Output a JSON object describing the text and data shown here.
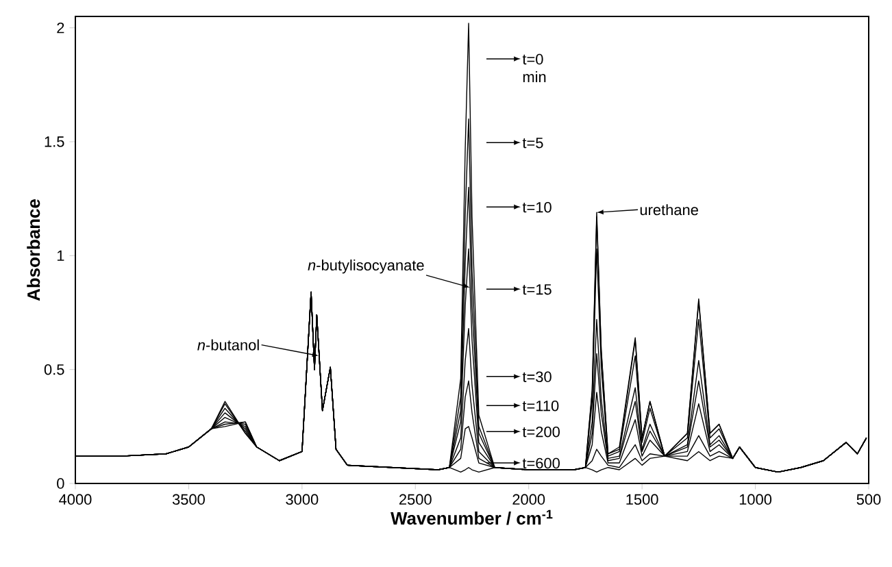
{
  "chart_data": {
    "type": "line",
    "xlabel": "Wavenumber / cm$^{-1}$",
    "ylabel": "Absorbance",
    "xlim": [
      4000,
      500
    ],
    "xticks": [
      4000,
      3500,
      3000,
      2500,
      2000,
      1500,
      1000,
      500
    ],
    "ylim": [
      0,
      2.05
    ],
    "yticks": [
      0,
      {
        "value": 0.5,
        "label": "0.5"
      },
      1,
      {
        "value": 1.5,
        "label": "1.5"
      },
      2
    ],
    "x": [
      4000,
      3800,
      3600,
      3500,
      3400,
      3340,
      3250,
      3200,
      3100,
      3000,
      2960,
      2945,
      2935,
      2910,
      2875,
      2850,
      2800,
      2600,
      2400,
      2350,
      2300,
      2280,
      2265,
      2250,
      2220,
      2150,
      2000,
      1800,
      1750,
      1720,
      1700,
      1680,
      1650,
      1600,
      1530,
      1500,
      1465,
      1400,
      1300,
      1250,
      1200,
      1160,
      1100,
      1070,
      1000,
      900,
      800,
      700,
      600,
      550,
      510
    ],
    "series": [
      {
        "color": "#000000",
        "values": [
          0.12,
          0.12,
          0.13,
          0.16,
          0.24,
          0.36,
          0.22,
          0.16,
          0.1,
          0.14,
          0.84,
          0.5,
          0.74,
          0.32,
          0.51,
          0.15,
          0.08,
          0.07,
          0.06,
          0.07,
          0.46,
          1.47,
          2.02,
          1.17,
          0.3,
          0.07,
          0.06,
          0.06,
          0.07,
          0.06,
          0.05,
          0.06,
          0.07,
          0.06,
          0.11,
          0.08,
          0.11,
          0.12,
          0.1,
          0.14,
          0.1,
          0.12,
          0.11,
          0.16,
          0.07,
          0.05,
          0.07,
          0.1,
          0.18,
          0.13,
          0.2
        ]
      },
      {
        "color": "#000000",
        "values": [
          0.12,
          0.12,
          0.13,
          0.16,
          0.24,
          0.35,
          0.22,
          0.16,
          0.1,
          0.14,
          0.84,
          0.5,
          0.74,
          0.32,
          0.51,
          0.15,
          0.08,
          0.07,
          0.06,
          0.07,
          0.38,
          1.18,
          1.6,
          0.94,
          0.25,
          0.07,
          0.06,
          0.06,
          0.07,
          0.1,
          0.15,
          0.12,
          0.08,
          0.07,
          0.17,
          0.1,
          0.13,
          0.12,
          0.12,
          0.21,
          0.12,
          0.14,
          0.11,
          0.16,
          0.07,
          0.05,
          0.07,
          0.1,
          0.18,
          0.13,
          0.2
        ]
      },
      {
        "color": "#000000",
        "values": [
          0.12,
          0.12,
          0.13,
          0.16,
          0.24,
          0.33,
          0.23,
          0.16,
          0.1,
          0.14,
          0.84,
          0.5,
          0.74,
          0.32,
          0.51,
          0.15,
          0.08,
          0.07,
          0.06,
          0.07,
          0.32,
          0.97,
          1.3,
          0.78,
          0.22,
          0.07,
          0.06,
          0.06,
          0.07,
          0.17,
          0.4,
          0.23,
          0.09,
          0.09,
          0.28,
          0.12,
          0.19,
          0.12,
          0.14,
          0.35,
          0.14,
          0.17,
          0.11,
          0.16,
          0.07,
          0.05,
          0.07,
          0.1,
          0.18,
          0.13,
          0.2
        ]
      },
      {
        "color": "#000000",
        "values": [
          0.12,
          0.12,
          0.13,
          0.16,
          0.24,
          0.31,
          0.24,
          0.16,
          0.1,
          0.14,
          0.84,
          0.5,
          0.74,
          0.32,
          0.51,
          0.15,
          0.08,
          0.07,
          0.06,
          0.07,
          0.27,
          0.78,
          1.03,
          0.63,
          0.18,
          0.07,
          0.06,
          0.06,
          0.07,
          0.22,
          0.57,
          0.31,
          0.1,
          0.11,
          0.36,
          0.14,
          0.23,
          0.12,
          0.16,
          0.45,
          0.16,
          0.19,
          0.11,
          0.16,
          0.07,
          0.05,
          0.07,
          0.1,
          0.18,
          0.13,
          0.2
        ]
      },
      {
        "color": "#000000",
        "values": [
          0.12,
          0.12,
          0.13,
          0.16,
          0.24,
          0.29,
          0.25,
          0.16,
          0.1,
          0.14,
          0.84,
          0.5,
          0.74,
          0.32,
          0.51,
          0.15,
          0.08,
          0.07,
          0.06,
          0.07,
          0.2,
          0.54,
          0.68,
          0.43,
          0.14,
          0.07,
          0.06,
          0.06,
          0.07,
          0.27,
          0.72,
          0.37,
          0.11,
          0.12,
          0.42,
          0.15,
          0.26,
          0.12,
          0.17,
          0.54,
          0.17,
          0.21,
          0.11,
          0.16,
          0.07,
          0.05,
          0.07,
          0.1,
          0.18,
          0.13,
          0.2
        ]
      },
      {
        "color": "#000000",
        "values": [
          0.12,
          0.12,
          0.13,
          0.16,
          0.24,
          0.27,
          0.26,
          0.16,
          0.1,
          0.14,
          0.84,
          0.5,
          0.74,
          0.32,
          0.51,
          0.15,
          0.08,
          0.07,
          0.06,
          0.07,
          0.15,
          0.38,
          0.45,
          0.31,
          0.11,
          0.07,
          0.06,
          0.06,
          0.07,
          0.36,
          1.03,
          0.51,
          0.12,
          0.14,
          0.56,
          0.18,
          0.33,
          0.12,
          0.2,
          0.72,
          0.2,
          0.24,
          0.11,
          0.16,
          0.07,
          0.05,
          0.07,
          0.1,
          0.18,
          0.13,
          0.2
        ]
      },
      {
        "color": "#000000",
        "values": [
          0.12,
          0.12,
          0.13,
          0.16,
          0.24,
          0.26,
          0.27,
          0.16,
          0.1,
          0.14,
          0.84,
          0.5,
          0.74,
          0.32,
          0.51,
          0.15,
          0.08,
          0.07,
          0.06,
          0.07,
          0.11,
          0.24,
          0.25,
          0.2,
          0.09,
          0.07,
          0.06,
          0.06,
          0.07,
          0.4,
          1.17,
          0.58,
          0.13,
          0.15,
          0.63,
          0.2,
          0.36,
          0.12,
          0.22,
          0.8,
          0.22,
          0.26,
          0.11,
          0.16,
          0.07,
          0.05,
          0.07,
          0.1,
          0.18,
          0.13,
          0.2
        ]
      },
      {
        "color": "#000000",
        "values": [
          0.12,
          0.12,
          0.13,
          0.16,
          0.24,
          0.25,
          0.27,
          0.16,
          0.1,
          0.14,
          0.84,
          0.5,
          0.74,
          0.32,
          0.51,
          0.15,
          0.08,
          0.07,
          0.06,
          0.07,
          0.05,
          0.06,
          0.07,
          0.06,
          0.05,
          0.07,
          0.06,
          0.06,
          0.07,
          0.41,
          1.19,
          0.59,
          0.13,
          0.16,
          0.64,
          0.2,
          0.36,
          0.12,
          0.22,
          0.81,
          0.22,
          0.26,
          0.11,
          0.16,
          0.07,
          0.05,
          0.07,
          0.1,
          0.18,
          0.13,
          0.2
        ]
      }
    ],
    "annotations": [
      {
        "text": "*n*-butanol",
        "x": 2925,
        "y": 0.56
      },
      {
        "text": "*n*-butylisocyanate",
        "x": 2259,
        "y": 0.86
      },
      {
        "text": "urethane",
        "x": 1700,
        "y": 1.19
      },
      "t=0 min",
      "t=5",
      "t=10",
      "t=15",
      "t=30",
      "t=110",
      "t=200",
      "t=600"
    ]
  }
}
